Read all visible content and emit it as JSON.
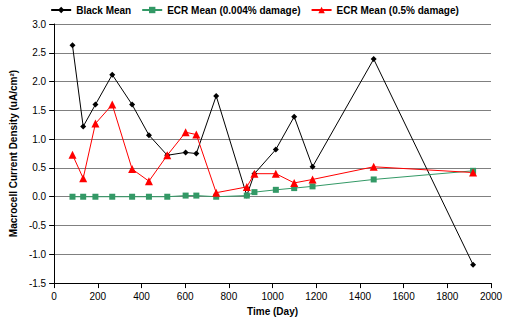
{
  "chart_data": {
    "type": "line",
    "x_label": "Time (Day)",
    "y_label": "Macrocell Current Density (uA/cm²)",
    "x": [
      84,
      133,
      189,
      266,
      357,
      434,
      518,
      602,
      651,
      742,
      882,
      917,
      1015,
      1099,
      1183,
      1463,
      1918
    ],
    "series": [
      {
        "name": "Black Mean",
        "color": "#000000",
        "marker": "diamond",
        "values": [
          2.63,
          1.22,
          1.6,
          2.12,
          1.6,
          1.07,
          0.72,
          0.77,
          0.75,
          1.75,
          0.02,
          0.4,
          0.82,
          1.39,
          0.52,
          2.39,
          -1.18
        ]
      },
      {
        "name": "ECR Mean (0.004% damage)",
        "color": "#339966",
        "marker": "square",
        "values": [
          0.0,
          0.0,
          0.0,
          0.0,
          0.0,
          0.0,
          0.0,
          0.02,
          0.02,
          0.0,
          0.02,
          0.08,
          0.12,
          0.15,
          0.18,
          0.3,
          0.45
        ]
      },
      {
        "name": "ECR Mean (0.5% damage)",
        "color": "#ff0000",
        "marker": "triangle",
        "values": [
          0.73,
          0.32,
          1.27,
          1.6,
          0.48,
          0.27,
          0.72,
          1.12,
          1.08,
          0.07,
          0.17,
          0.4,
          0.4,
          0.24,
          0.3,
          0.52,
          0.42
        ]
      }
    ],
    "xlim": [
      0,
      2000
    ],
    "xticks": [
      0,
      200,
      400,
      600,
      800,
      1000,
      1200,
      1400,
      1600,
      1800,
      2000
    ],
    "ylim": [
      -1.5,
      3.0
    ],
    "yticks": [
      -1.5,
      {
        "value": -1,
        "label": "-1.0"
      },
      -0.5,
      {
        "value": 0,
        "label": "0.0"
      },
      0.5,
      {
        "value": 1,
        "label": "1.0"
      },
      1.5,
      {
        "value": 2,
        "label": "2.0"
      },
      2.5,
      {
        "value": 3,
        "label": "3.0"
      }
    ],
    "grid": true,
    "legend": "top"
  }
}
